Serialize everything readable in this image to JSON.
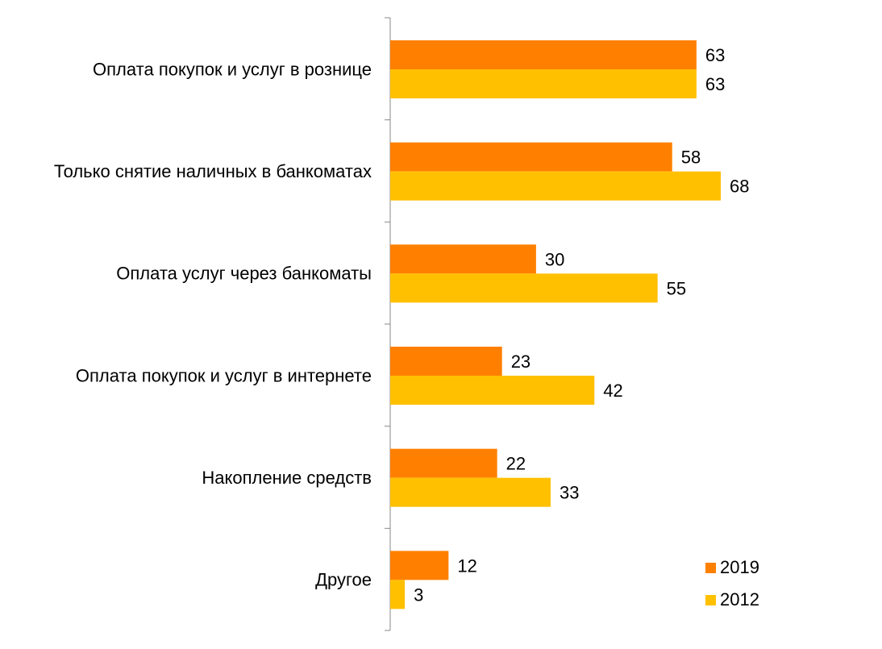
{
  "chart_data": {
    "type": "bar",
    "orientation": "horizontal",
    "title": "",
    "xlabel": "",
    "ylabel": "",
    "categories": [
      "Оплата покупок и услуг в рознице",
      "Только снятие наличных в банкоматах",
      "Оплата услуг через банкоматы",
      "Оплата покупок и услуг в интернете",
      "Накопление средств",
      "Другое"
    ],
    "series": [
      {
        "name": "2019",
        "color": "#FF8000",
        "values": [
          63,
          58,
          30,
          23,
          22,
          12
        ]
      },
      {
        "name": "2012",
        "color": "#FFC000",
        "values": [
          63,
          68,
          55,
          42,
          33,
          3
        ]
      }
    ],
    "xlim": [
      0,
      100
    ],
    "grid": false,
    "data_labels": true,
    "legend_position": "bottom-right"
  }
}
